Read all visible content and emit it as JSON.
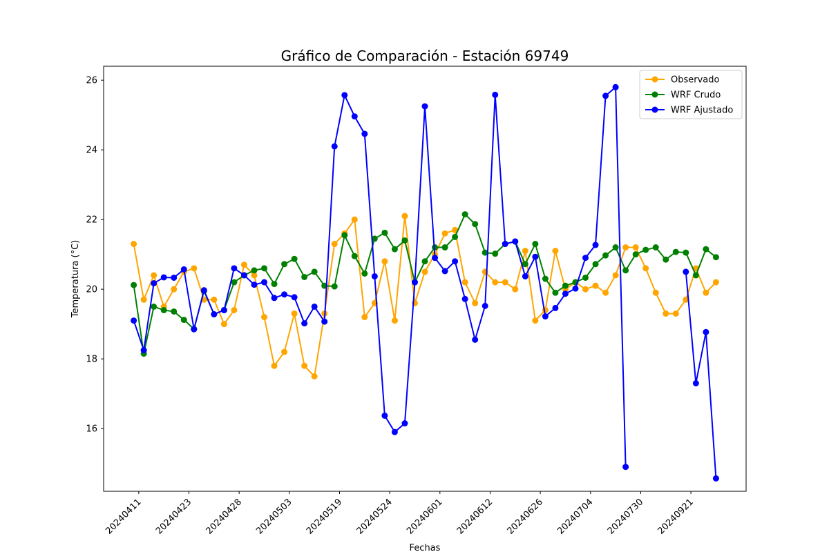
{
  "chart_data": {
    "type": "line",
    "title": "Gráfico de Comparación - Estación 69749",
    "xlabel": "Fechas",
    "ylabel": "Temperatura (°C)",
    "ylim": [
      14.2,
      26.4
    ],
    "yticks": [
      16,
      18,
      20,
      22,
      24,
      26
    ],
    "grid": false,
    "legend_placement": "top-right",
    "x_tick_labels": [
      "20240411",
      "20240423",
      "20240428",
      "20240503",
      "20240519",
      "20240524",
      "20240601",
      "20240612",
      "20240626",
      "20240704",
      "20240730",
      "20240921"
    ],
    "x_tick_positions": [
      0.5,
      5.5,
      10.5,
      15.5,
      20.5,
      25.5,
      30.5,
      35.5,
      40.5,
      45.5,
      50.5,
      55.5
    ],
    "x_range": [
      -3.0,
      61.0
    ],
    "series": [
      {
        "name": "Observado",
        "color": "#ffa500",
        "values": [
          21.3,
          19.7,
          20.4,
          19.5,
          20.0,
          20.5,
          20.6,
          19.7,
          19.7,
          19.0,
          19.4,
          20.7,
          20.4,
          19.2,
          17.8,
          18.2,
          19.3,
          17.8,
          17.5,
          19.3,
          21.3,
          21.6,
          22.0,
          19.2,
          19.6,
          20.8,
          19.1,
          22.1,
          19.6,
          20.5,
          21.0,
          21.6,
          21.7,
          20.2,
          19.6,
          20.5,
          20.2,
          20.2,
          20.0,
          21.1,
          19.1,
          19.4,
          21.1,
          20.0,
          20.2,
          20.0,
          20.1,
          19.9,
          20.4,
          21.2,
          21.2,
          20.6,
          19.9,
          19.3,
          19.3,
          19.7,
          20.6,
          19.9,
          20.2
        ]
      },
      {
        "name": "WRF Crudo",
        "color": "#008000",
        "values": [
          20.12,
          18.15,
          19.5,
          19.4,
          19.36,
          19.12,
          18.86,
          19.95,
          19.28,
          19.4,
          20.2,
          20.4,
          20.54,
          20.6,
          20.15,
          20.72,
          20.87,
          20.35,
          20.5,
          20.1,
          20.08,
          21.55,
          20.95,
          20.45,
          21.45,
          21.62,
          21.15,
          21.4,
          20.2,
          20.8,
          21.2,
          21.2,
          21.5,
          22.15,
          21.87,
          21.05,
          21.02,
          21.3,
          21.37,
          20.72,
          21.3,
          20.3,
          19.9,
          20.1,
          20.2,
          20.33,
          20.72,
          20.97,
          21.2,
          20.54,
          21.0,
          21.13,
          21.2,
          20.85,
          21.07,
          21.05,
          20.4,
          21.15,
          20.92
        ]
      },
      {
        "name": "WRF Ajustado",
        "color": "#0000ff",
        "values": [
          19.1,
          18.25,
          20.17,
          20.34,
          20.33,
          20.57,
          18.85,
          19.97,
          19.28,
          19.4,
          20.6,
          20.4,
          20.13,
          20.2,
          19.75,
          19.85,
          19.77,
          19.02,
          19.5,
          19.07,
          24.1,
          25.57,
          24.96,
          24.46,
          20.37,
          16.37,
          15.9,
          16.15,
          20.2,
          25.25,
          20.9,
          20.52,
          20.8,
          19.72,
          18.55,
          19.52,
          25.58,
          21.3,
          21.37,
          20.37,
          20.93,
          19.22,
          19.46,
          19.87,
          20.02,
          20.9,
          21.27,
          25.55,
          25.8,
          14.9,
          null,
          null,
          null,
          null,
          null,
          20.5,
          17.3,
          18.77,
          14.57
        ]
      }
    ]
  }
}
